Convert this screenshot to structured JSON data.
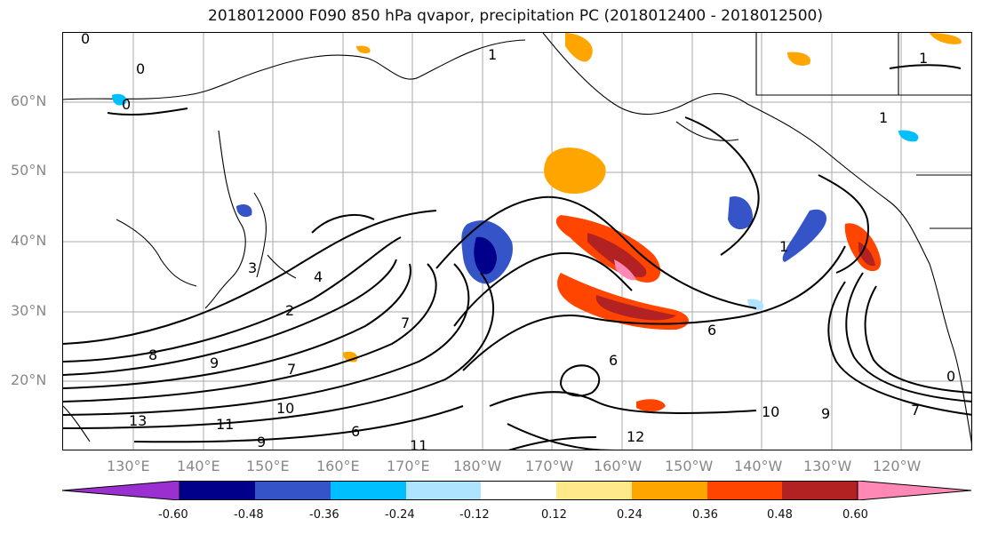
{
  "title": "2018012000 F090 850 hPa qvapor, precipitation PC (2018012400 - 2018012500)",
  "lat_labels": [
    "60°N",
    "50°N",
    "40°N",
    "30°N",
    "20°N"
  ],
  "lon_labels": [
    "130°E",
    "140°E",
    "150°E",
    "160°E",
    "170°E",
    "180°W",
    "170°W",
    "160°W",
    "150°W",
    "140°W",
    "130°W",
    "120°W"
  ],
  "contour_labels": [
    "0",
    "0",
    "0",
    "1",
    "1",
    "3",
    "4",
    "2",
    "7",
    "8",
    "9",
    "7",
    "10",
    "13",
    "11",
    "9",
    "6",
    "11",
    "6",
    "6",
    "12",
    "10",
    "9",
    "7",
    "0",
    "1",
    "1"
  ],
  "colorbar": {
    "colors": [
      "#9b30d0",
      "#00008b",
      "#3454c8",
      "#00bfff",
      "#aee4ff",
      "#ffffff",
      "#ffe98a",
      "#ffa500",
      "#ff4500",
      "#b22222",
      "#ff89b4"
    ],
    "tick_labels": [
      "-0.60",
      "-0.48",
      "-0.36",
      "-0.24",
      "-0.12",
      "0.12",
      "0.24",
      "0.36",
      "0.48",
      "0.60"
    ]
  }
}
